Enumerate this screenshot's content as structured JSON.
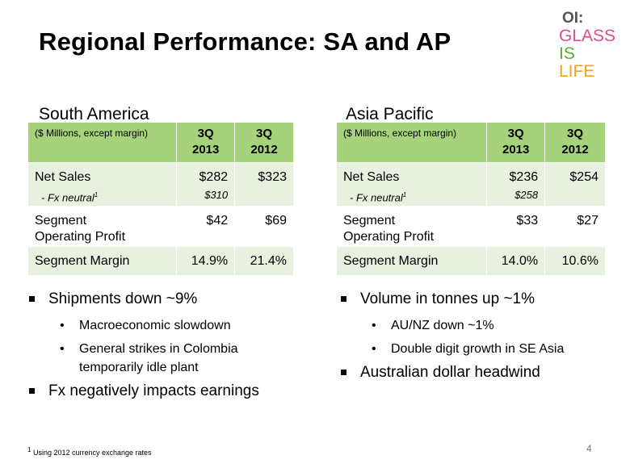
{
  "title": "Regional Performance: SA and AP",
  "logo": {
    "mark": "OI:",
    "words": [
      {
        "text": "GLASS",
        "color": "#e24a8b"
      },
      {
        "text": "IS",
        "color": "#5aa83a"
      },
      {
        "text": "LIFE",
        "color": "#f2a31a"
      }
    ]
  },
  "south_america": {
    "region": "South America",
    "header": {
      "label": "($ Millions, except margin)",
      "col1": "3Q\n2013",
      "col2": "3Q\n2012"
    },
    "rows": {
      "net_sales": {
        "label": "Net Sales",
        "sub": "- Fx neutral",
        "sup": "1",
        "v1": "$282",
        "v1_sub": "$310",
        "v2": "$323"
      },
      "profit": {
        "label1": "Segment",
        "label2": "Operating Profit",
        "v1": "$42",
        "v2": "$69"
      },
      "margin": {
        "label": "Segment Margin",
        "v1": "14.9%",
        "v2": "21.4%"
      }
    },
    "bullets": {
      "b1": "Shipments down ~9%",
      "b1_sub1": "Macroeconomic slowdown",
      "b1_sub2a": "General strikes in Colombia",
      "b1_sub2b": "temporarily idle plant",
      "b2": "Fx negatively impacts earnings"
    }
  },
  "asia_pacific": {
    "region": "Asia Pacific",
    "header": {
      "label": "($ Millions, except margin)",
      "col1": "3Q\n2013",
      "col2": "3Q\n2012"
    },
    "rows": {
      "net_sales": {
        "label": "Net Sales",
        "sub": "- Fx neutral",
        "sup": "1",
        "v1": "$236",
        "v1_sub": "$258",
        "v2": "$254"
      },
      "profit": {
        "label1": "Segment",
        "label2": "Operating Profit",
        "v1": "$33",
        "v2": "$27"
      },
      "margin": {
        "label": "Segment Margin",
        "v1": "14.0%",
        "v2": "10.6%"
      }
    },
    "bullets": {
      "b1": "Volume in tonnes up ~1%",
      "b1_sub1": "AU/NZ down ~1%",
      "b1_sub2": "Double digit growth in SE Asia",
      "b2": "Australian dollar headwind"
    }
  },
  "bullet_dot": "•",
  "footnote": {
    "sup": "1",
    "text": " Using 2012 currency exchange rates"
  },
  "page_number": "4"
}
